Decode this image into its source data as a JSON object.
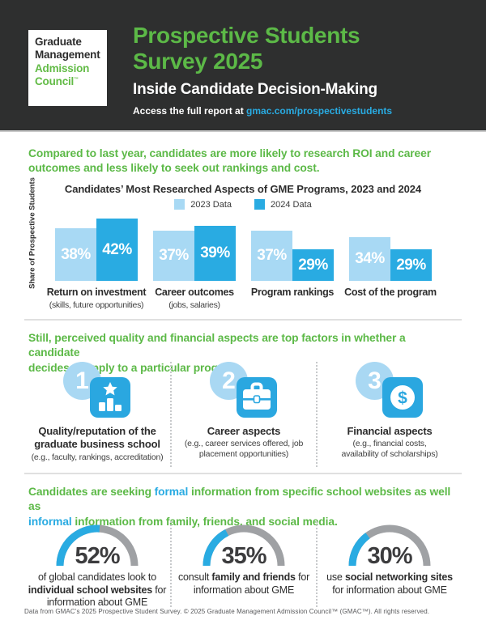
{
  "colors": {
    "header_bg": "#2e2f2f",
    "green": "#5cb947",
    "blue": "#29abe2",
    "light_blue": "#a8d9f4",
    "dark_text": "#2d2d2d",
    "gauge_gray": "#9fa1a4"
  },
  "header": {
    "logo_lines": [
      {
        "text": "Graduate",
        "color": "dark"
      },
      {
        "text": "Management",
        "color": "dark"
      },
      {
        "text": "Admission",
        "color": "green"
      },
      {
        "text": "Council",
        "tm": "™",
        "color": "green"
      }
    ],
    "title_line1": "Prospective Students",
    "title_line2": "Survey 2025",
    "subtitle": "Inside Candidate Decision-Making",
    "access_prefix": "Access the full report at ",
    "access_link": "gmac.com/prospectivestudents"
  },
  "sections": {
    "research": {
      "heading_parts": [
        {
          "text": "Compared to last year, candidates are more likely to research ROI and career"
        },
        {
          "br": true
        },
        {
          "text": "outcomes and less likely to seek out rankings and cost."
        }
      ]
    },
    "factors": {
      "heading_parts": [
        {
          "text": "Still, perceived quality and financial aspects are top factors in whether a candidate"
        },
        {
          "br": true
        },
        {
          "text": "decides to apply to a particular program."
        }
      ],
      "items": [
        {
          "number": "1",
          "icon": "podium-star-icon",
          "title_lines": [
            "Quality/reputation of the",
            "graduate business school"
          ],
          "subtitle_lines": [
            "(e.g., faculty, rankings, accreditation)"
          ]
        },
        {
          "number": "2",
          "icon": "briefcase-icon",
          "title_lines": [
            "Career aspects"
          ],
          "subtitle_lines": [
            "(e.g., career services offered, job",
            "placement opportunities)"
          ]
        },
        {
          "number": "3",
          "icon": "dollar-circle-icon",
          "title_lines": [
            "Financial aspects"
          ],
          "subtitle_lines": [
            "(e.g., financial costs,",
            "availability of scholarships)"
          ]
        }
      ]
    },
    "informal": {
      "heading_parts": [
        {
          "text": "Candidates are seeking ",
          "style": "green"
        },
        {
          "text": "formal",
          "style": "blue"
        },
        {
          "text": " information from specific school websites as well as",
          "style": "green"
        },
        {
          "br": true
        },
        {
          "text": "informal",
          "style": "blue"
        },
        {
          "text": " information from family, friends, and social media.",
          "style": "green"
        }
      ],
      "gauges": [
        {
          "percent": 52,
          "percent_label": "52%",
          "label_parts": [
            {
              "text": "of global candidates look to"
            },
            {
              "br": true
            },
            {
              "text": "individual school websites",
              "bold": true
            },
            {
              "text": " for"
            },
            {
              "br": true
            },
            {
              "text": "information about GME"
            }
          ]
        },
        {
          "percent": 35,
          "percent_label": "35%",
          "label_parts": [
            {
              "text": "consult "
            },
            {
              "text": "family and friends",
              "bold": true
            },
            {
              "text": " for"
            },
            {
              "br": true
            },
            {
              "text": "information about GME"
            }
          ]
        },
        {
          "percent": 30,
          "percent_label": "30%",
          "label_parts": [
            {
              "text": "use "
            },
            {
              "text": "social networking sites",
              "bold": true
            },
            {
              "br": true
            },
            {
              "text": "for information about GME"
            }
          ]
        }
      ]
    }
  },
  "chart_data": [
    {
      "type": "bar",
      "title": "Candidates’ Most Researched Aspects of GME Programs, 2023 and 2024",
      "ylabel": "Share of Prospective Students",
      "xlabel": "",
      "unit": "%",
      "legend_position": "top",
      "value_labels": "inside bars, white",
      "categories": [
        "Return on investment",
        "Career outcomes",
        "Program rankings",
        "Cost of the program"
      ],
      "category_sublabels": [
        "(skills, future opportunities)",
        "(jobs, salaries)",
        "",
        ""
      ],
      "series": [
        {
          "name": "2023 Data",
          "color": "#a8d9f4",
          "values": [
            38,
            37,
            37,
            34
          ]
        },
        {
          "name": "2024 Data",
          "color": "#29abe2",
          "values": [
            42,
            39,
            29,
            29
          ]
        }
      ]
    },
    {
      "type": "gauge",
      "subtype": "semicircle",
      "unit": "%",
      "values": [
        52,
        35,
        30
      ],
      "labels": [
        "of global candidates look to individual school websites for information about GME",
        "consult family and friends for information about GME",
        "use social networking sites for information about GME"
      ],
      "arc_colors": {
        "fill": "#29abe2",
        "track": "#9fa1a4"
      }
    }
  ],
  "footer": "Data from GMAC’s 2025 Prospective Student Survey. © 2025 Graduate Management Admission Council™ (GMAC™). All rights reserved."
}
